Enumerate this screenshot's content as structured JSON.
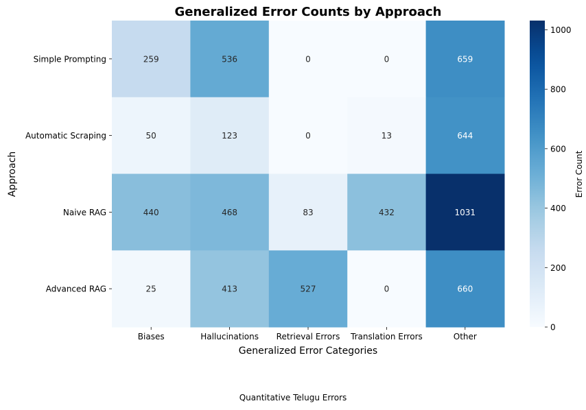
{
  "caption": "Quantitative Telugu Errors",
  "chart_data": {
    "type": "heatmap",
    "title": "Generalized Error Counts by Approach",
    "xlabel": "Generalized Error Categories",
    "ylabel": "Approach",
    "x_categories": [
      "Biases",
      "Hallucinations",
      "Retrieval Errors",
      "Translation Errors",
      "Other"
    ],
    "y_categories": [
      "Simple Prompting",
      "Automatic Scraping",
      "Naive RAG",
      "Advanced RAG"
    ],
    "values": [
      [
        259,
        536,
        0,
        0,
        659
      ],
      [
        50,
        123,
        0,
        13,
        644
      ],
      [
        440,
        468,
        83,
        432,
        1031
      ],
      [
        25,
        413,
        527,
        0,
        660
      ]
    ],
    "colorbar": {
      "label": "Error Count",
      "min": 0,
      "max": 1031,
      "ticks": [
        0,
        200,
        400,
        600,
        800,
        1000
      ]
    },
    "colormap": "Blues",
    "annotated": true
  }
}
